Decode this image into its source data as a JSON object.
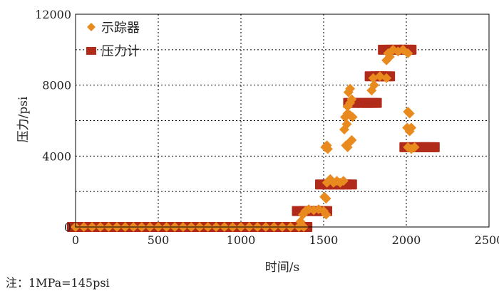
{
  "chart_data": {
    "type": "scatter",
    "title": "",
    "xlabel": "时间/s",
    "ylabel": "压力/psi",
    "xlim": [
      0,
      2500
    ],
    "ylim": [
      0,
      12000
    ],
    "x_ticks": [
      0,
      500,
      1000,
      1500,
      2000,
      2500
    ],
    "y_ticks_labeled": [
      0,
      4000,
      8000,
      12000
    ],
    "y_gridlines": [
      2000,
      4000,
      6000,
      8000,
      10000
    ],
    "grid": true,
    "legend_position": "top-left",
    "series": [
      {
        "name": "示踪器",
        "marker": "diamond",
        "color": "#E88A1E",
        "points": [
          [
            0,
            0
          ],
          [
            50,
            0
          ],
          [
            100,
            0
          ],
          [
            150,
            0
          ],
          [
            200,
            0
          ],
          [
            250,
            0
          ],
          [
            300,
            0
          ],
          [
            350,
            0
          ],
          [
            400,
            0
          ],
          [
            450,
            0
          ],
          [
            500,
            0
          ],
          [
            550,
            0
          ],
          [
            600,
            0
          ],
          [
            650,
            0
          ],
          [
            700,
            0
          ],
          [
            750,
            0
          ],
          [
            800,
            0
          ],
          [
            850,
            0
          ],
          [
            900,
            0
          ],
          [
            950,
            0
          ],
          [
            1000,
            0
          ],
          [
            1050,
            0
          ],
          [
            1100,
            0
          ],
          [
            1150,
            0
          ],
          [
            1200,
            0
          ],
          [
            1250,
            0
          ],
          [
            1300,
            0
          ],
          [
            1350,
            0
          ],
          [
            1380,
            0
          ],
          [
            1360,
            300
          ],
          [
            1375,
            700
          ],
          [
            1390,
            900
          ],
          [
            1410,
            1000
          ],
          [
            1440,
            950
          ],
          [
            1470,
            1000
          ],
          [
            1500,
            900
          ],
          [
            1515,
            700
          ],
          [
            1505,
            1700
          ],
          [
            1515,
            1600
          ],
          [
            1520,
            2500
          ],
          [
            1540,
            2700
          ],
          [
            1560,
            2500
          ],
          [
            1580,
            2600
          ],
          [
            1600,
            2500
          ],
          [
            1620,
            2600
          ],
          [
            1510,
            4500
          ],
          [
            1525,
            4400
          ],
          [
            1520,
            4600
          ],
          [
            1635,
            4600
          ],
          [
            1645,
            4500
          ],
          [
            1660,
            4800
          ],
          [
            1670,
            4900
          ],
          [
            1625,
            5500
          ],
          [
            1640,
            5800
          ],
          [
            1630,
            6200
          ],
          [
            1645,
            6400
          ],
          [
            1660,
            6300
          ],
          [
            1675,
            6200
          ],
          [
            1645,
            6800
          ],
          [
            1660,
            7000
          ],
          [
            1670,
            7200
          ],
          [
            1650,
            7600
          ],
          [
            1660,
            7800
          ],
          [
            1790,
            7700
          ],
          [
            1805,
            8000
          ],
          [
            1800,
            8400
          ],
          [
            1840,
            8500
          ],
          [
            1880,
            8400
          ],
          [
            1880,
            9400
          ],
          [
            1900,
            9600
          ],
          [
            1890,
            9800
          ],
          [
            1920,
            10000
          ],
          [
            1950,
            9900
          ],
          [
            1980,
            10000
          ],
          [
            2010,
            9800
          ],
          [
            2010,
            6500
          ],
          [
            2020,
            6400
          ],
          [
            2005,
            5600
          ],
          [
            2020,
            5400
          ],
          [
            2030,
            5600
          ],
          [
            2010,
            4500
          ],
          [
            2030,
            4400
          ],
          [
            2050,
            4500
          ]
        ]
      },
      {
        "name": "压力计",
        "marker": "square",
        "color": "#B02B1A",
        "points": [
          [
            0,
            0
          ],
          [
            100,
            0
          ],
          [
            200,
            0
          ],
          [
            300,
            0
          ],
          [
            400,
            0
          ],
          [
            500,
            0
          ],
          [
            600,
            0
          ],
          [
            700,
            0
          ],
          [
            800,
            0
          ],
          [
            900,
            0
          ],
          [
            1000,
            0
          ],
          [
            1100,
            0
          ],
          [
            1200,
            0
          ],
          [
            1300,
            0
          ],
          [
            1380,
            0
          ],
          [
            1360,
            900
          ],
          [
            1400,
            900
          ],
          [
            1440,
            900
          ],
          [
            1480,
            900
          ],
          [
            1500,
            900
          ],
          [
            1500,
            2400
          ],
          [
            1540,
            2400
          ],
          [
            1580,
            2400
          ],
          [
            1620,
            2400
          ],
          [
            1650,
            2400
          ],
          [
            1670,
            7000
          ],
          [
            1710,
            7000
          ],
          [
            1750,
            7000
          ],
          [
            1780,
            7000
          ],
          [
            1800,
            7000
          ],
          [
            1800,
            8500
          ],
          [
            1830,
            8500
          ],
          [
            1860,
            8500
          ],
          [
            1880,
            8500
          ],
          [
            1880,
            10000
          ],
          [
            1920,
            10000
          ],
          [
            1960,
            10000
          ],
          [
            2000,
            10000
          ],
          [
            2010,
            10000
          ],
          [
            2010,
            4500
          ],
          [
            2050,
            4500
          ],
          [
            2090,
            4500
          ],
          [
            2130,
            4500
          ],
          [
            2150,
            4500
          ]
        ]
      }
    ]
  },
  "note": "注：1MPa=145psi"
}
